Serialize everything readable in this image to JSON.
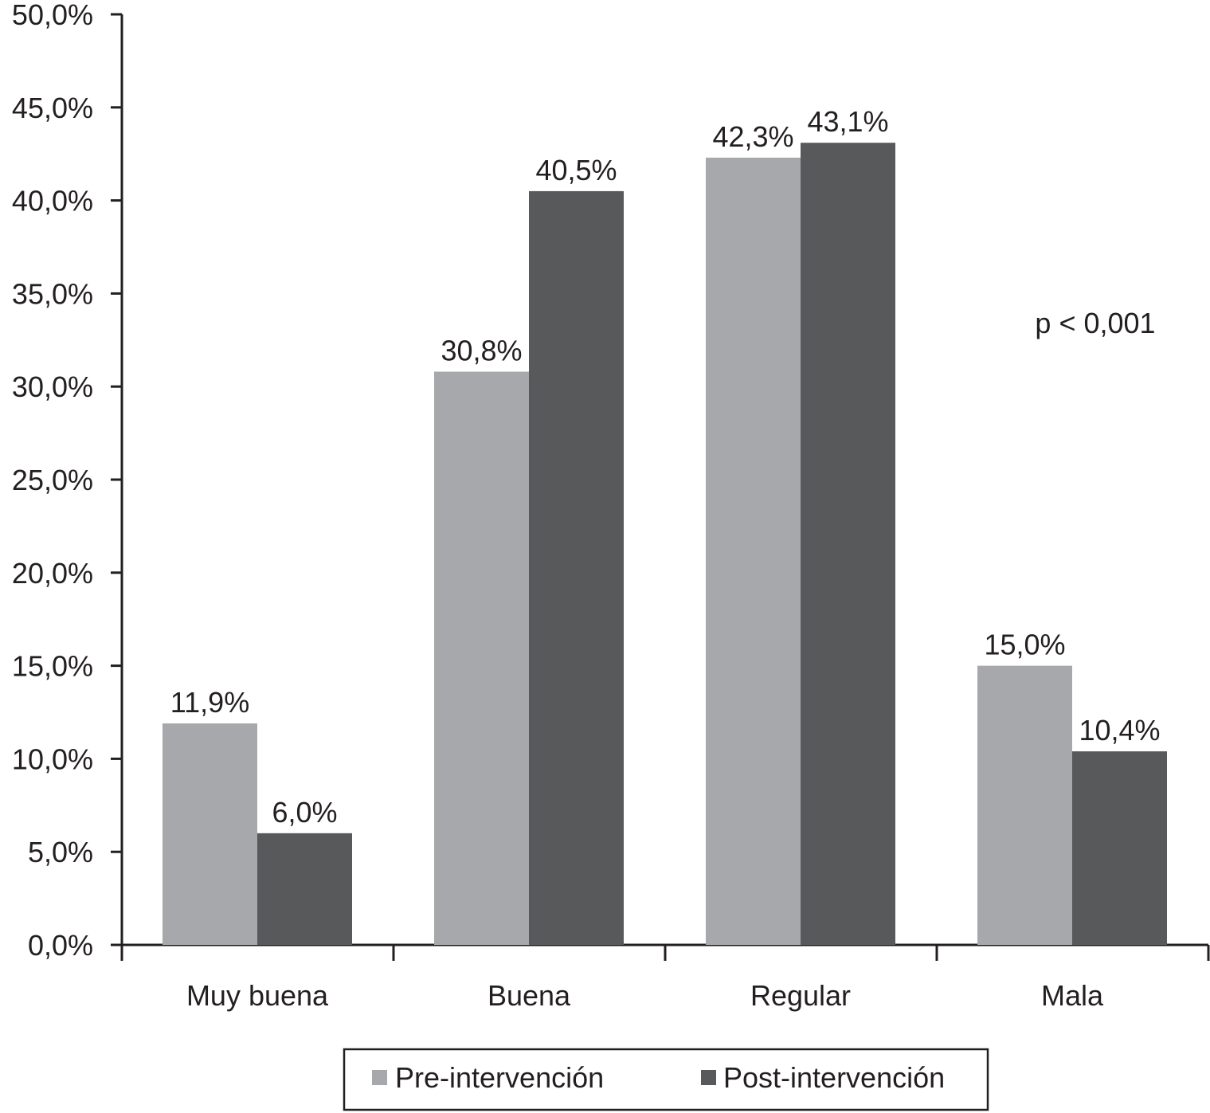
{
  "chart_data": {
    "type": "bar",
    "categories": [
      "Muy buena",
      "Buena",
      "Regular",
      "Mala"
    ],
    "series": [
      {
        "name": "Pre-intervención",
        "values": [
          11.9,
          30.8,
          42.3,
          15.0
        ],
        "labels": [
          "11,9%",
          "30,8%",
          "42,3%",
          "15,0%"
        ],
        "color": "#a7a8ab"
      },
      {
        "name": "Post-intervención",
        "values": [
          6.0,
          40.5,
          43.1,
          10.4
        ],
        "labels": [
          "6,0%",
          "40,5%",
          "43,1%",
          "10,4%"
        ],
        "color": "#58595b"
      }
    ],
    "ylim": [
      0,
      50
    ],
    "y_ticks": [
      0,
      5,
      10,
      15,
      20,
      25,
      30,
      35,
      40,
      45,
      50
    ],
    "y_tick_labels": [
      "0,0%",
      "5,0%",
      "10,0%",
      "15,0%",
      "20,0%",
      "25,0%",
      "30,0%",
      "35,0%",
      "40,0%",
      "45,0%",
      "50,0%"
    ],
    "annotation": "p < 0,001",
    "legend_position": "bottom",
    "grid": false,
    "title": "",
    "xlabel": "",
    "ylabel": ""
  }
}
